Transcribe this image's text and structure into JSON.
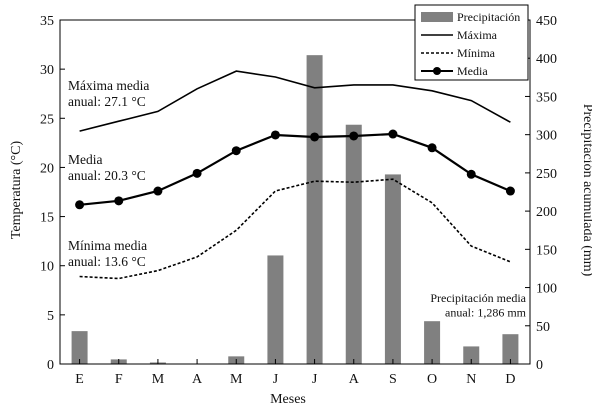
{
  "chart_data": {
    "type": "bar+line",
    "categories": [
      "E",
      "F",
      "M",
      "A",
      "M",
      "J",
      "J",
      "A",
      "S",
      "O",
      "N",
      "D"
    ],
    "xlabel": "Meses",
    "ylabel_left": "Temperatura (°C)",
    "ylabel_right": "Precipitación acumulada (mm)",
    "ylim_left": [
      0,
      35
    ],
    "yticks_left": [
      0,
      5,
      10,
      15,
      20,
      25,
      30,
      35
    ],
    "ylim_right": [
      0,
      450
    ],
    "yticks_right": [
      0,
      50,
      100,
      150,
      200,
      250,
      300,
      350,
      400,
      450
    ],
    "legend_position": "top-right",
    "bar_series": {
      "name": "Precipitación",
      "axis": "right",
      "color": "#808080",
      "values": [
        43,
        6,
        2,
        0,
        10,
        142,
        404,
        313,
        248,
        56,
        23,
        39
      ]
    },
    "line_series": [
      {
        "name": "Máxima",
        "axis": "left",
        "style": "solid",
        "values": [
          23.7,
          24.7,
          25.7,
          28.0,
          29.8,
          29.2,
          28.1,
          28.4,
          28.4,
          27.8,
          26.8,
          24.6
        ]
      },
      {
        "name": "Mínima",
        "axis": "left",
        "style": "dotted",
        "values": [
          8.9,
          8.7,
          9.5,
          10.9,
          13.6,
          17.6,
          18.6,
          18.5,
          18.8,
          16.4,
          12.0,
          10.4
        ]
      },
      {
        "name": "Media",
        "axis": "left",
        "style": "solid-markers",
        "values": [
          16.2,
          16.6,
          17.6,
          19.4,
          21.7,
          23.3,
          23.1,
          23.2,
          23.4,
          22.0,
          19.3,
          17.6
        ]
      }
    ],
    "annotations": [
      {
        "id": "max",
        "lines": [
          "Máxima media",
          "anual: 27.1 °C"
        ]
      },
      {
        "id": "media",
        "lines": [
          "Media",
          "anual: 20.3 °C"
        ]
      },
      {
        "id": "min",
        "lines": [
          "Mínima media",
          "anual: 13.6 °C"
        ]
      },
      {
        "id": "precip",
        "lines": [
          "Precipitación media",
          "anual: 1,286 mm"
        ]
      }
    ],
    "grid": false
  }
}
